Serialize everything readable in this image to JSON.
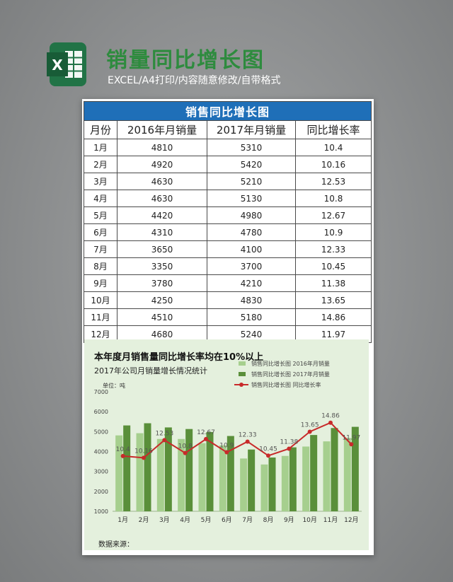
{
  "header": {
    "title": "销量同比增长图",
    "subtitle": "EXCEL/A4打印/内容随意修改/自带格式",
    "logo_letter": "X"
  },
  "table": {
    "caption": "销售同比增长图",
    "columns": [
      "月份",
      "2016年月销量",
      "2017年月销量",
      "同比增长率"
    ],
    "rows": [
      [
        "1月",
        "4810",
        "5310",
        "10.4"
      ],
      [
        "2月",
        "4920",
        "5420",
        "10.16"
      ],
      [
        "3月",
        "4630",
        "5210",
        "12.53"
      ],
      [
        "4月",
        "4630",
        "5130",
        "10.8"
      ],
      [
        "5月",
        "4420",
        "4980",
        "12.67"
      ],
      [
        "6月",
        "4310",
        "4780",
        "10.9"
      ],
      [
        "7月",
        "3650",
        "4100",
        "12.33"
      ],
      [
        "8月",
        "3350",
        "3700",
        "10.45"
      ],
      [
        "9月",
        "3780",
        "4210",
        "11.38"
      ],
      [
        "10月",
        "4250",
        "4830",
        "13.65"
      ],
      [
        "11月",
        "4510",
        "5180",
        "14.86"
      ],
      [
        "12月",
        "4680",
        "5240",
        "11.97"
      ]
    ]
  },
  "chart_data": {
    "type": "bar",
    "title": "本年度月销售量同比增长率均在10%以上",
    "subtitle": "2017年公司月销量增长情况统计",
    "unit_label": "单位：吨",
    "source_label": "数据来源：",
    "categories": [
      "1月",
      "2月",
      "3月",
      "4月",
      "5月",
      "6月",
      "7月",
      "8月",
      "9月",
      "10月",
      "11月",
      "12月"
    ],
    "series": [
      {
        "name": "销售同比增长图 2016年月销量",
        "type": "bar",
        "color": "#a6cf8e",
        "values": [
          4810,
          4920,
          4630,
          4630,
          4420,
          4310,
          3650,
          3350,
          3780,
          4250,
          4510,
          4680
        ]
      },
      {
        "name": "销售同比增长图 2017年月销量",
        "type": "bar",
        "color": "#5a8f3a",
        "values": [
          5310,
          5420,
          5210,
          5130,
          4980,
          4780,
          4100,
          3700,
          4210,
          4830,
          5180,
          5240
        ]
      },
      {
        "name": "销售同比增长图 同比增长率",
        "type": "line",
        "color": "#c82a2a",
        "values": [
          10.4,
          10.16,
          12.53,
          10.8,
          12.67,
          10.9,
          12.33,
          10.45,
          11.38,
          13.65,
          14.86,
          11.97
        ]
      }
    ],
    "y_ticks": [
      1000,
      2000,
      3000,
      4000,
      5000,
      6000,
      7000
    ],
    "ylim": [
      1000,
      7000
    ],
    "line_ylim": [
      3,
      19
    ],
    "legend_position": "top-right",
    "grid": false
  }
}
